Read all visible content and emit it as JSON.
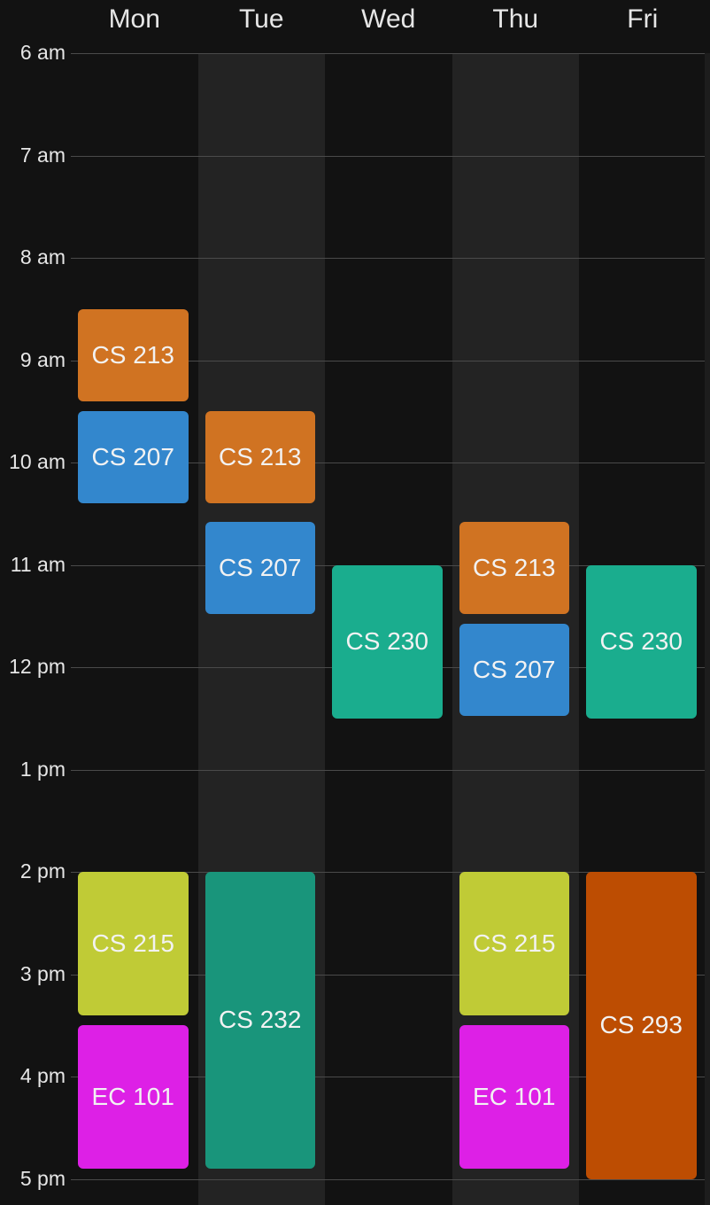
{
  "days": [
    "Mon",
    "Tue",
    "Wed",
    "Thu",
    "Fri"
  ],
  "hours": [
    "6 am",
    "7 am",
    "8 am",
    "9 am",
    "10 am",
    "11 am",
    "12 pm",
    "1 pm",
    "2 pm",
    "3 pm",
    "4 pm",
    "5 pm"
  ],
  "colors": {
    "CS 213": "#d07322",
    "CS 207": "#3387cd",
    "CS 230": "#1aad8e",
    "CS 215": "#c0cb36",
    "EC 101": "#dd20e6",
    "CS 232": "#19957b",
    "CS 293": "#bd4d02"
  },
  "events": [
    {
      "course": "CS 213",
      "day": 0,
      "start": 8.5,
      "end": 9.4
    },
    {
      "course": "CS 207",
      "day": 0,
      "start": 9.5,
      "end": 10.4
    },
    {
      "course": "CS 215",
      "day": 0,
      "start": 14.0,
      "end": 15.4
    },
    {
      "course": "EC 101",
      "day": 0,
      "start": 15.5,
      "end": 16.9
    },
    {
      "course": "CS 213",
      "day": 1,
      "start": 9.5,
      "end": 10.4
    },
    {
      "course": "CS 207",
      "day": 1,
      "start": 10.58,
      "end": 11.48
    },
    {
      "course": "CS 232",
      "day": 1,
      "start": 14.0,
      "end": 16.9
    },
    {
      "course": "CS 230",
      "day": 2,
      "start": 11.0,
      "end": 12.5
    },
    {
      "course": "CS 213",
      "day": 3,
      "start": 10.58,
      "end": 11.48
    },
    {
      "course": "CS 207",
      "day": 3,
      "start": 11.58,
      "end": 12.48
    },
    {
      "course": "CS 215",
      "day": 3,
      "start": 14.0,
      "end": 15.4
    },
    {
      "course": "EC 101",
      "day": 3,
      "start": 15.5,
      "end": 16.9
    },
    {
      "course": "CS 230",
      "day": 4,
      "start": 11.0,
      "end": 12.5
    },
    {
      "course": "CS 293",
      "day": 4,
      "start": 14.0,
      "end": 17.0
    }
  ]
}
